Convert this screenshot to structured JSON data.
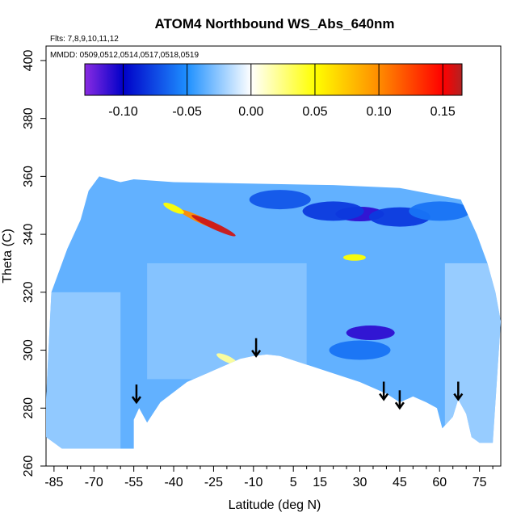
{
  "chart_data": {
    "type": "heatmap",
    "title": "ATOM4 Northbound WS_Abs_640nm",
    "notes": {
      "flights": "Flts: 7,8,9,10,11,12",
      "dates": "MMDD: 0509,0512,0514,0517,0518,0519"
    },
    "xlabel": "Latitude (deg N)",
    "ylabel": "Theta (C)",
    "xlim": [
      -88,
      83
    ],
    "ylim": [
      260,
      405
    ],
    "x_ticks": [
      -85,
      -70,
      -55,
      -40,
      -25,
      -10,
      5,
      15,
      30,
      45,
      60,
      75
    ],
    "x_tick_labels": [
      "-85",
      "-70",
      "-55",
      "-40",
      "-25",
      "-10",
      "5",
      "15",
      "30",
      "45",
      "60",
      "75"
    ],
    "y_ticks": [
      260,
      280,
      300,
      320,
      340,
      360,
      380,
      400
    ],
    "y_tick_labels": [
      "260",
      "280",
      "300",
      "320",
      "340",
      "360",
      "380",
      "400"
    ],
    "colorbar": {
      "range": [
        -0.13,
        0.165
      ],
      "ticks": [
        -0.1,
        -0.05,
        0.0,
        0.05,
        0.1,
        0.15
      ],
      "tick_labels": [
        "-0.10",
        "-0.05",
        "0.00",
        "0.05",
        "0.10",
        "0.15"
      ],
      "stops": [
        "#8a2be2",
        "#0000c8",
        "#1e90ff",
        "#ffffff",
        "#ffff00",
        "#ff8c00",
        "#ff0000",
        "#b22222"
      ]
    },
    "arrows": [
      {
        "lat": -54,
        "theta": 282
      },
      {
        "lat": -9,
        "theta": 298
      },
      {
        "lat": 39,
        "theta": 283
      },
      {
        "lat": 45,
        "theta": 280
      },
      {
        "lat": 67,
        "theta": 283
      }
    ],
    "surface_lower_boundary": [
      [
        -88,
        270
      ],
      [
        -85,
        268
      ],
      [
        -82,
        266
      ],
      [
        -55,
        266
      ],
      [
        -55,
        276
      ],
      [
        -53,
        280
      ],
      [
        -50,
        275
      ],
      [
        -45,
        282
      ],
      [
        -35,
        289
      ],
      [
        -25,
        293
      ],
      [
        -15,
        297
      ],
      [
        -10,
        298
      ],
      [
        -5,
        298.5
      ],
      [
        0,
        298
      ],
      [
        10,
        295
      ],
      [
        20,
        292
      ],
      [
        30,
        289
      ],
      [
        40,
        285
      ],
      [
        45,
        282
      ],
      [
        50,
        284
      ],
      [
        55,
        282
      ],
      [
        59,
        280
      ],
      [
        61,
        273
      ],
      [
        63,
        275
      ],
      [
        65,
        277
      ],
      [
        67,
        283
      ],
      [
        70,
        278
      ],
      [
        72,
        270
      ],
      [
        75,
        268
      ],
      [
        80,
        268
      ]
    ],
    "upper_boundary": [
      [
        -88,
        283
      ],
      [
        -86,
        320
      ],
      [
        -80,
        335
      ],
      [
        -75,
        345
      ],
      [
        -72,
        355
      ],
      [
        -68,
        360
      ],
      [
        -60,
        358
      ],
      [
        -55,
        359
      ],
      [
        -40,
        358
      ],
      [
        20,
        357
      ],
      [
        45,
        356
      ],
      [
        68,
        352
      ],
      [
        70,
        348
      ],
      [
        74,
        340
      ],
      [
        78,
        330
      ],
      [
        81,
        320
      ],
      [
        83,
        310
      ]
    ],
    "features": [
      {
        "name": "low",
        "lat": 30,
        "theta": 347,
        "value": -0.11
      },
      {
        "name": "low",
        "lat": 20,
        "theta": 348,
        "value": -0.08
      },
      {
        "name": "low",
        "lat": 0,
        "theta": 352,
        "value": -0.07
      },
      {
        "name": "low",
        "lat": 45,
        "theta": 346,
        "value": -0.08
      },
      {
        "name": "low",
        "lat": 60,
        "theta": 348,
        "value": -0.06
      },
      {
        "name": "low",
        "lat": 34,
        "theta": 306,
        "value": -0.11
      },
      {
        "name": "low",
        "lat": 30,
        "theta": 300,
        "value": -0.06
      },
      {
        "name": "high",
        "lat": -30,
        "theta": 345,
        "value": 0.1
      },
      {
        "name": "high",
        "lat": -25,
        "theta": 343,
        "value": 0.16
      },
      {
        "name": "high",
        "lat": -40,
        "theta": 349,
        "value": 0.05
      },
      {
        "name": "high",
        "lat": 28,
        "theta": 332,
        "value": 0.05
      },
      {
        "name": "high",
        "lat": -20,
        "theta": 297,
        "value": 0.02
      }
    ]
  }
}
